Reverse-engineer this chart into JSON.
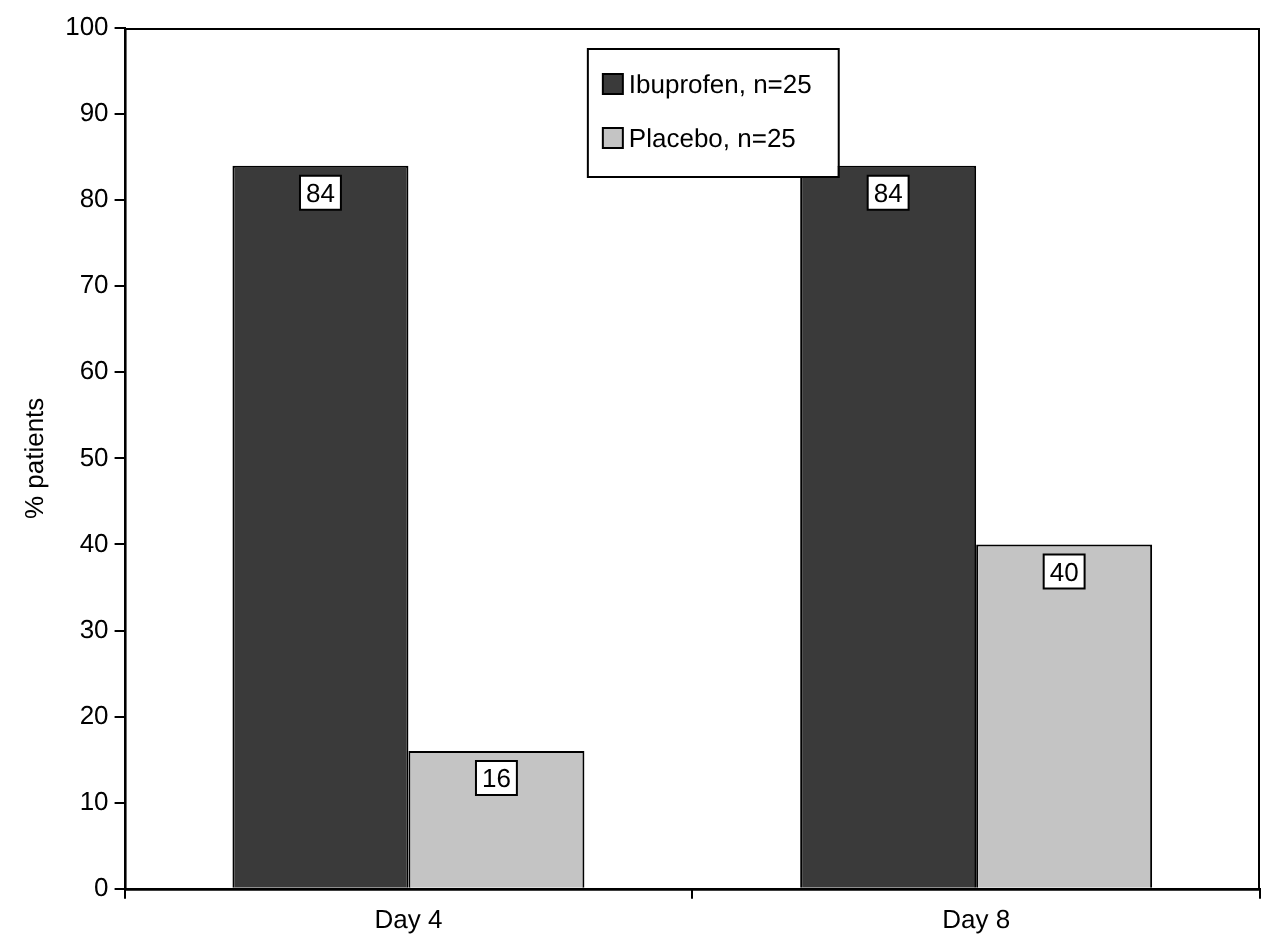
{
  "chart_data": {
    "type": "bar",
    "ylabel": "% patients",
    "categories": [
      "Day 4",
      "Day 8"
    ],
    "series": [
      {
        "name": "Ibuprofen, n=25",
        "color": "#3a3a3a",
        "values": [
          84,
          84
        ]
      },
      {
        "name": "Placebo, n=25",
        "color": "#c4c4c4",
        "values": [
          16,
          40
        ]
      }
    ],
    "ylim": [
      0,
      100
    ],
    "yticks": [
      0,
      10,
      20,
      30,
      40,
      50,
      60,
      70,
      80,
      90,
      100
    ],
    "grid": false,
    "legend": "top",
    "data_labels": true
  }
}
